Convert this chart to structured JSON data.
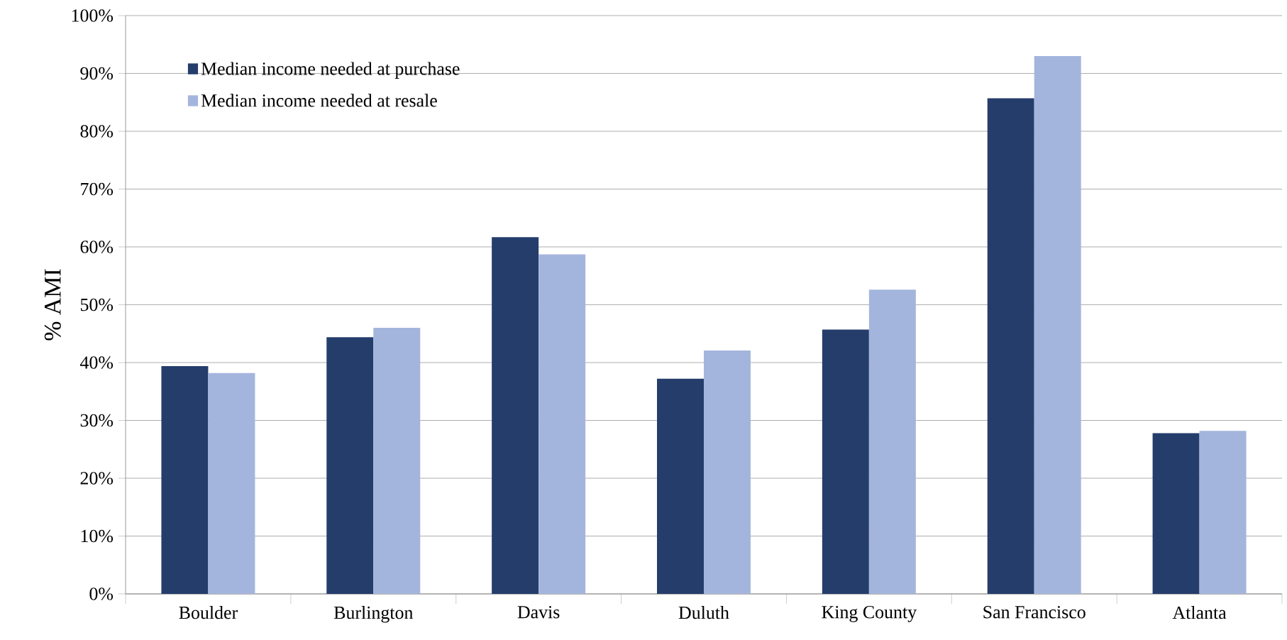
{
  "chart_data": {
    "type": "bar",
    "ylabel": "% AMI",
    "categories": [
      "Boulder",
      "Burlington",
      "Davis",
      "Duluth",
      "King County",
      "San Francisco",
      "Atlanta"
    ],
    "series": [
      {
        "name": "Median income needed at purchase",
        "color": "#253d6b",
        "values": [
          39.4,
          44.4,
          61.7,
          37.2,
          45.7,
          85.7,
          27.8
        ]
      },
      {
        "name": "Median income needed at resale",
        "color": "#a4b5dd",
        "values": [
          38.2,
          46.0,
          58.7,
          42.1,
          52.6,
          93.0,
          28.2
        ]
      }
    ],
    "ylim": [
      0,
      100
    ],
    "yticks": [
      {
        "value": 0,
        "label": "0%"
      },
      {
        "value": 10,
        "label": "10%"
      },
      {
        "value": 20,
        "label": "20%"
      },
      {
        "value": 30,
        "label": "30%"
      },
      {
        "value": 40,
        "label": "40%"
      },
      {
        "value": 50,
        "label": "50%"
      },
      {
        "value": 60,
        "label": "60%"
      },
      {
        "value": 70,
        "label": "70%"
      },
      {
        "value": 80,
        "label": "80%"
      },
      {
        "value": 90,
        "label": "90%"
      },
      {
        "value": 100,
        "label": "100%"
      }
    ],
    "grid": "y",
    "legend": "top left"
  }
}
